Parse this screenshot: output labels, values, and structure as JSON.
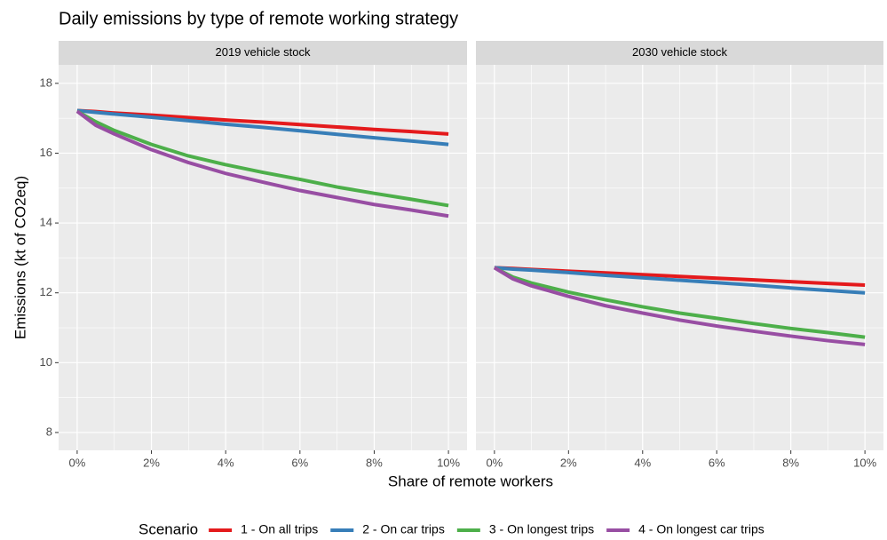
{
  "chart_data": {
    "type": "line",
    "title": "Daily emissions by type of remote working strategy",
    "x_label": "Share of remote workers",
    "y_label": "Emissions (kt of CO2eq)",
    "legend_title": "Scenario",
    "grid": true,
    "legend_position": "bottom",
    "x": [
      0,
      0.5,
      1,
      2,
      3,
      4,
      5,
      6,
      7,
      8,
      9,
      10
    ],
    "xlim": [
      -0.5,
      10.5
    ],
    "xticks": [
      {
        "value": 0,
        "label": "0%"
      },
      {
        "value": 2,
        "label": "2%"
      },
      {
        "value": 4,
        "label": "4%"
      },
      {
        "value": 6,
        "label": "6%"
      },
      {
        "value": 8,
        "label": "8%"
      },
      {
        "value": 10,
        "label": "10%"
      }
    ],
    "ylim": [
      7.49,
      18.53
    ],
    "yticks": [
      8,
      10,
      12,
      14,
      16,
      18
    ],
    "series": [
      {
        "name": "1 - On all trips",
        "color": "#e41a1c"
      },
      {
        "name": "2 - On car trips",
        "color": "#377eb8"
      },
      {
        "name": "3 - On longest trips",
        "color": "#4daf4a"
      },
      {
        "name": "4 - On longest car trips",
        "color": "#984ea3"
      }
    ],
    "facets": [
      {
        "title": "2019 vehicle stock",
        "values": [
          [
            17.22,
            17.19,
            17.15,
            17.09,
            17.02,
            16.95,
            16.89,
            16.82,
            16.75,
            16.68,
            16.62,
            16.55
          ],
          [
            17.22,
            17.17,
            17.12,
            17.03,
            16.93,
            16.83,
            16.74,
            16.64,
            16.54,
            16.44,
            16.35,
            16.25
          ],
          [
            17.2,
            16.9,
            16.65,
            16.25,
            15.92,
            15.67,
            15.45,
            15.25,
            15.03,
            14.85,
            14.68,
            14.5
          ],
          [
            17.2,
            16.8,
            16.55,
            16.1,
            15.73,
            15.42,
            15.17,
            14.93,
            14.73,
            14.53,
            14.37,
            14.2
          ]
        ]
      },
      {
        "title": "2030 vehicle stock",
        "values": [
          [
            12.72,
            12.7,
            12.67,
            12.62,
            12.57,
            12.52,
            12.47,
            12.42,
            12.37,
            12.32,
            12.27,
            12.22
          ],
          [
            12.72,
            12.68,
            12.65,
            12.58,
            12.5,
            12.43,
            12.36,
            12.29,
            12.22,
            12.14,
            12.07,
            12.0
          ],
          [
            12.72,
            12.45,
            12.28,
            12.02,
            11.8,
            11.6,
            11.42,
            11.27,
            11.12,
            10.98,
            10.86,
            10.73
          ],
          [
            12.72,
            12.4,
            12.2,
            11.9,
            11.63,
            11.42,
            11.22,
            11.05,
            10.9,
            10.76,
            10.63,
            10.52
          ]
        ]
      }
    ]
  }
}
